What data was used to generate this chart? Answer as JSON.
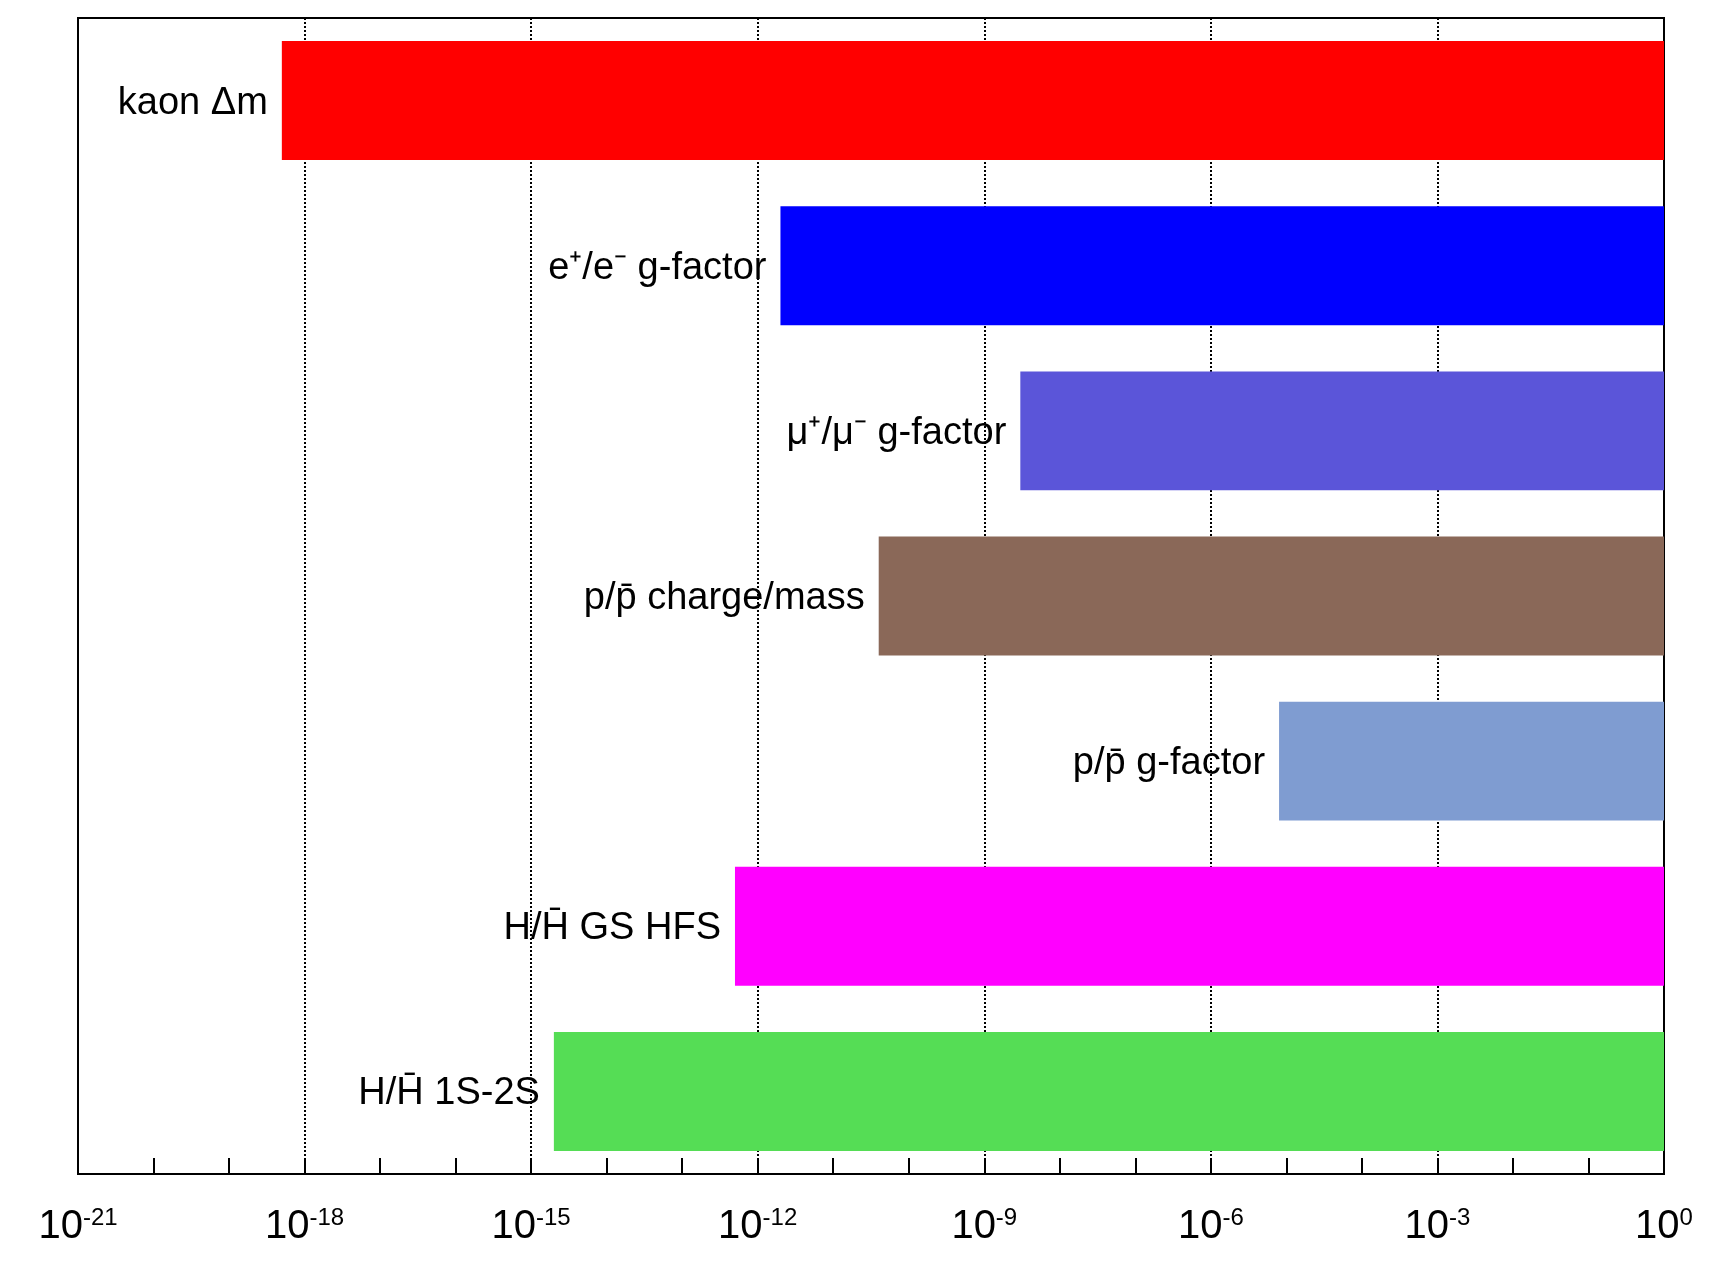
{
  "chart_data": {
    "type": "bar",
    "orientation": "horizontal",
    "log": "x",
    "categories": [
      "kaon Δm",
      "e⁺/e⁻ g-factor",
      "μ⁺/μ⁻ g-factor",
      "p/p̄ charge/mass",
      "p/p̄ g-factor",
      "H/H̄ GS HFS",
      "H/H̄ 1S-2S"
    ],
    "base": [
      5e-19,
      2e-12,
      3e-09,
      4e-11,
      8e-06,
      5e-13,
      2e-15
    ],
    "values": [
      1,
      1,
      1,
      1,
      1,
      1,
      1
    ],
    "colors": [
      "#ff0000",
      "#0000ff",
      "#5b55d9",
      "#8a6858",
      "#7f9cd1",
      "#ff00ff",
      "#55dd55"
    ],
    "xlim": [
      1e-21,
      1
    ],
    "xticks": [
      {
        "value": 1e-21,
        "label": "10$^{-21}$"
      },
      {
        "value": 1e-20,
        "label": null
      },
      {
        "value": 1e-19,
        "label": null
      },
      {
        "value": 1e-18,
        "label": "10$^{-18}$"
      },
      {
        "value": 1e-17,
        "label": null
      },
      {
        "value": 1e-16,
        "label": null
      },
      {
        "value": 1e-15,
        "label": "10$^{-15}$"
      },
      {
        "value": 1e-14,
        "label": null
      },
      {
        "value": 1e-13,
        "label": null
      },
      {
        "value": 1e-12,
        "label": "10$^{-12}$"
      },
      {
        "value": 1e-11,
        "label": null
      },
      {
        "value": 1e-10,
        "label": null
      },
      {
        "value": 1e-09,
        "label": "10$^{-9}$"
      },
      {
        "value": 1e-08,
        "label": null
      },
      {
        "value": 1e-07,
        "label": null
      },
      {
        "value": 1e-06,
        "label": "10$^{-6}$"
      },
      {
        "value": 1e-05,
        "label": null
      },
      {
        "value": 0.0001,
        "label": null
      },
      {
        "value": 0.001,
        "label": "10$^{-3}$"
      },
      {
        "value": 0.01,
        "label": null
      },
      {
        "value": 0.1,
        "label": null
      },
      {
        "value": 1,
        "label": "10$^{0}$"
      }
    ],
    "grid": "x",
    "tick_labels": "x"
  }
}
